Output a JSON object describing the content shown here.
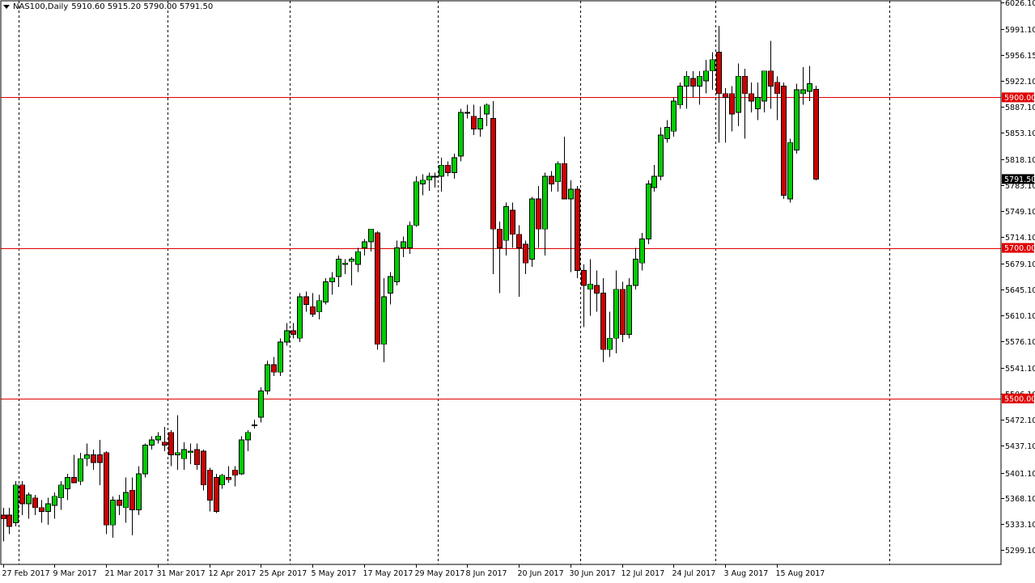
{
  "header": {
    "symbol": "NAS100,Daily",
    "ohlc": "5910.60 5915.20 5790.00 5791.50"
  },
  "colors": {
    "bull": "#00cc00",
    "bear": "#cc0000",
    "wick": "#000000",
    "hline": "#e00000",
    "grid": "#000000",
    "background": "#ffffff",
    "price_label": "#000000"
  },
  "chart_data": {
    "type": "candlestick",
    "title": "",
    "xlabel": "",
    "ylabel": "",
    "ylim": [
      5281.7,
      6026.1
    ],
    "y_ticks": [
      "6026.10",
      "5991.10",
      "5956.15",
      "5922.10",
      "5887.10",
      "5853.10",
      "5818.10",
      "5783.10",
      "5749.10",
      "5714.10",
      "5679.10",
      "5645.10",
      "5610.10",
      "5576.10",
      "5541.10",
      "5506.10",
      "5472.10",
      "5437.10",
      "5401.10",
      "5368.10",
      "5333.10",
      "5299.10"
    ],
    "x_labels": [
      {
        "index": 0,
        "label": "27 Feb 2017"
      },
      {
        "index": 8,
        "label": "9 Mar 2017"
      },
      {
        "index": 16,
        "label": "21 Mar 2017"
      },
      {
        "index": 24,
        "label": "31 Mar 2017"
      },
      {
        "index": 32,
        "label": "12 Apr 2017"
      },
      {
        "index": 40,
        "label": "25 Apr 2017"
      },
      {
        "index": 48,
        "label": "5 May 2017"
      },
      {
        "index": 56,
        "label": "17 May 2017"
      },
      {
        "index": 64,
        "label": "29 May 2017"
      },
      {
        "index": 72,
        "label": "8 Jun 2017"
      },
      {
        "index": 80,
        "label": "20 Jun 2017"
      },
      {
        "index": 88,
        "label": "30 Jun 2017"
      },
      {
        "index": 96,
        "label": "12 Jul 2017"
      },
      {
        "index": 104,
        "label": "24 Jul 2017"
      },
      {
        "index": 112,
        "label": "3 Aug 2017"
      },
      {
        "index": 120,
        "label": "15 Aug 2017"
      }
    ],
    "period_separators": [
      2,
      25,
      44,
      67,
      89,
      110,
      137
    ],
    "hlines": [
      {
        "value": 5900.0,
        "label": "5900.00"
      },
      {
        "value": 5700.0,
        "label": "5700.00"
      },
      {
        "value": 5500.0,
        "label": "5500.00"
      }
    ],
    "current_price": {
      "value": 5791.5,
      "label": "5791.50"
    },
    "candles": [
      {
        "o": 5345,
        "h": 5355,
        "l": 5310,
        "c": 5340
      },
      {
        "o": 5345,
        "h": 5355,
        "l": 5320,
        "c": 5330
      },
      {
        "o": 5335,
        "h": 5390,
        "l": 5330,
        "c": 5385
      },
      {
        "o": 5385,
        "h": 5390,
        "l": 5345,
        "c": 5360
      },
      {
        "o": 5360,
        "h": 5375,
        "l": 5340,
        "c": 5372
      },
      {
        "o": 5368,
        "h": 5372,
        "l": 5345,
        "c": 5355
      },
      {
        "o": 5355,
        "h": 5365,
        "l": 5335,
        "c": 5350
      },
      {
        "o": 5350,
        "h": 5368,
        "l": 5332,
        "c": 5360
      },
      {
        "o": 5358,
        "h": 5375,
        "l": 5340,
        "c": 5370
      },
      {
        "o": 5368,
        "h": 5390,
        "l": 5352,
        "c": 5385
      },
      {
        "o": 5380,
        "h": 5400,
        "l": 5365,
        "c": 5395
      },
      {
        "o": 5395,
        "h": 5425,
        "l": 5388,
        "c": 5388
      },
      {
        "o": 5390,
        "h": 5428,
        "l": 5385,
        "c": 5420
      },
      {
        "o": 5420,
        "h": 5440,
        "l": 5410,
        "c": 5425
      },
      {
        "o": 5425,
        "h": 5432,
        "l": 5405,
        "c": 5415
      },
      {
        "o": 5425,
        "h": 5445,
        "l": 5385,
        "c": 5415
      },
      {
        "o": 5428,
        "h": 5430,
        "l": 5320,
        "c": 5332
      },
      {
        "o": 5332,
        "h": 5370,
        "l": 5315,
        "c": 5365
      },
      {
        "o": 5365,
        "h": 5372,
        "l": 5345,
        "c": 5358
      },
      {
        "o": 5355,
        "h": 5395,
        "l": 5335,
        "c": 5375
      },
      {
        "o": 5378,
        "h": 5395,
        "l": 5318,
        "c": 5352
      },
      {
        "o": 5352,
        "h": 5410,
        "l": 5345,
        "c": 5400
      },
      {
        "o": 5400,
        "h": 5440,
        "l": 5395,
        "c": 5438
      },
      {
        "o": 5438,
        "h": 5450,
        "l": 5432,
        "c": 5445
      },
      {
        "o": 5445,
        "h": 5455,
        "l": 5440,
        "c": 5450
      },
      {
        "o": 5442,
        "h": 5462,
        "l": 5430,
        "c": 5438
      },
      {
        "o": 5455,
        "h": 5458,
        "l": 5410,
        "c": 5425
      },
      {
        "o": 5425,
        "h": 5478,
        "l": 5405,
        "c": 5428
      },
      {
        "o": 5420,
        "h": 5442,
        "l": 5405,
        "c": 5432
      },
      {
        "o": 5428,
        "h": 5440,
        "l": 5413,
        "c": 5430
      },
      {
        "o": 5432,
        "h": 5440,
        "l": 5405,
        "c": 5412
      },
      {
        "o": 5430,
        "h": 5432,
        "l": 5378,
        "c": 5385
      },
      {
        "o": 5405,
        "h": 5408,
        "l": 5350,
        "c": 5365
      },
      {
        "o": 5395,
        "h": 5400,
        "l": 5348,
        "c": 5350
      },
      {
        "o": 5385,
        "h": 5400,
        "l": 5380,
        "c": 5398
      },
      {
        "o": 5395,
        "h": 5410,
        "l": 5388,
        "c": 5392
      },
      {
        "o": 5405,
        "h": 5410,
        "l": 5383,
        "c": 5398
      },
      {
        "o": 5400,
        "h": 5450,
        "l": 5398,
        "c": 5445
      },
      {
        "o": 5445,
        "h": 5458,
        "l": 5430,
        "c": 5455
      },
      {
        "o": 5465,
        "h": 5472,
        "l": 5460,
        "c": 5465
      },
      {
        "o": 5475,
        "h": 5515,
        "l": 5468,
        "c": 5510
      },
      {
        "o": 5510,
        "h": 5550,
        "l": 5505,
        "c": 5545
      },
      {
        "o": 5545,
        "h": 5555,
        "l": 5530,
        "c": 5535
      },
      {
        "o": 5535,
        "h": 5580,
        "l": 5530,
        "c": 5575
      },
      {
        "o": 5575,
        "h": 5600,
        "l": 5570,
        "c": 5590
      },
      {
        "o": 5590,
        "h": 5600,
        "l": 5580,
        "c": 5585
      },
      {
        "o": 5580,
        "h": 5640,
        "l": 5575,
        "c": 5635
      },
      {
        "o": 5635,
        "h": 5642,
        "l": 5615,
        "c": 5625
      },
      {
        "o": 5622,
        "h": 5640,
        "l": 5608,
        "c": 5612
      },
      {
        "o": 5615,
        "h": 5638,
        "l": 5605,
        "c": 5630
      },
      {
        "o": 5628,
        "h": 5660,
        "l": 5625,
        "c": 5655
      },
      {
        "o": 5655,
        "h": 5668,
        "l": 5638,
        "c": 5660
      },
      {
        "o": 5662,
        "h": 5690,
        "l": 5648,
        "c": 5685
      },
      {
        "o": 5678,
        "h": 5685,
        "l": 5665,
        "c": 5680
      },
      {
        "o": 5682,
        "h": 5688,
        "l": 5650,
        "c": 5685
      },
      {
        "o": 5678,
        "h": 5700,
        "l": 5668,
        "c": 5695
      },
      {
        "o": 5700,
        "h": 5712,
        "l": 5690,
        "c": 5708
      },
      {
        "o": 5708,
        "h": 5725,
        "l": 5695,
        "c": 5725
      },
      {
        "o": 5720,
        "h": 5722,
        "l": 5565,
        "c": 5572
      },
      {
        "o": 5572,
        "h": 5660,
        "l": 5548,
        "c": 5635
      },
      {
        "o": 5640,
        "h": 5668,
        "l": 5625,
        "c": 5662
      },
      {
        "o": 5655,
        "h": 5710,
        "l": 5650,
        "c": 5700
      },
      {
        "o": 5700,
        "h": 5715,
        "l": 5688,
        "c": 5708
      },
      {
        "o": 5700,
        "h": 5735,
        "l": 5692,
        "c": 5730
      },
      {
        "o": 5730,
        "h": 5795,
        "l": 5728,
        "c": 5788
      },
      {
        "o": 5785,
        "h": 5798,
        "l": 5770,
        "c": 5790
      },
      {
        "o": 5790,
        "h": 5800,
        "l": 5776,
        "c": 5795
      },
      {
        "o": 5795,
        "h": 5800,
        "l": 5780,
        "c": 5795
      },
      {
        "o": 5795,
        "h": 5820,
        "l": 5775,
        "c": 5810
      },
      {
        "o": 5810,
        "h": 5815,
        "l": 5795,
        "c": 5800
      },
      {
        "o": 5800,
        "h": 5825,
        "l": 5792,
        "c": 5820
      },
      {
        "o": 5822,
        "h": 5885,
        "l": 5815,
        "c": 5880
      },
      {
        "o": 5880,
        "h": 5890,
        "l": 5872,
        "c": 5880
      },
      {
        "o": 5875,
        "h": 5890,
        "l": 5850,
        "c": 5858
      },
      {
        "o": 5858,
        "h": 5888,
        "l": 5848,
        "c": 5872
      },
      {
        "o": 5878,
        "h": 5892,
        "l": 5862,
        "c": 5890
      },
      {
        "o": 5872,
        "h": 5895,
        "l": 5665,
        "c": 5725
      },
      {
        "o": 5725,
        "h": 5735,
        "l": 5640,
        "c": 5700
      },
      {
        "o": 5710,
        "h": 5760,
        "l": 5690,
        "c": 5755
      },
      {
        "o": 5750,
        "h": 5760,
        "l": 5700,
        "c": 5718
      },
      {
        "o": 5718,
        "h": 5730,
        "l": 5635,
        "c": 5700
      },
      {
        "o": 5705,
        "h": 5710,
        "l": 5665,
        "c": 5680
      },
      {
        "o": 5685,
        "h": 5768,
        "l": 5675,
        "c": 5765
      },
      {
        "o": 5765,
        "h": 5782,
        "l": 5700,
        "c": 5725
      },
      {
        "o": 5725,
        "h": 5800,
        "l": 5690,
        "c": 5795
      },
      {
        "o": 5795,
        "h": 5802,
        "l": 5775,
        "c": 5785
      },
      {
        "o": 5788,
        "h": 5815,
        "l": 5775,
        "c": 5812
      },
      {
        "o": 5812,
        "h": 5848,
        "l": 5765,
        "c": 5765
      },
      {
        "o": 5765,
        "h": 5790,
        "l": 5668,
        "c": 5778
      },
      {
        "o": 5778,
        "h": 5782,
        "l": 5660,
        "c": 5670
      },
      {
        "o": 5670,
        "h": 5678,
        "l": 5595,
        "c": 5650
      },
      {
        "o": 5645,
        "h": 5685,
        "l": 5610,
        "c": 5652
      },
      {
        "o": 5650,
        "h": 5670,
        "l": 5615,
        "c": 5640
      },
      {
        "o": 5640,
        "h": 5660,
        "l": 5548,
        "c": 5565
      },
      {
        "o": 5565,
        "h": 5615,
        "l": 5555,
        "c": 5580
      },
      {
        "o": 5580,
        "h": 5670,
        "l": 5560,
        "c": 5645
      },
      {
        "o": 5645,
        "h": 5655,
        "l": 5575,
        "c": 5585
      },
      {
        "o": 5585,
        "h": 5660,
        "l": 5580,
        "c": 5650
      },
      {
        "o": 5650,
        "h": 5700,
        "l": 5645,
        "c": 5685
      },
      {
        "o": 5680,
        "h": 5720,
        "l": 5670,
        "c": 5712
      },
      {
        "o": 5712,
        "h": 5790,
        "l": 5705,
        "c": 5785
      },
      {
        "o": 5780,
        "h": 5810,
        "l": 5775,
        "c": 5795
      },
      {
        "o": 5795,
        "h": 5860,
        "l": 5790,
        "c": 5850
      },
      {
        "o": 5845,
        "h": 5870,
        "l": 5840,
        "c": 5860
      },
      {
        "o": 5855,
        "h": 5900,
        "l": 5848,
        "c": 5895
      },
      {
        "o": 5890,
        "h": 5920,
        "l": 5885,
        "c": 5915
      },
      {
        "o": 5915,
        "h": 5935,
        "l": 5885,
        "c": 5928
      },
      {
        "o": 5925,
        "h": 5935,
        "l": 5900,
        "c": 5915
      },
      {
        "o": 5915,
        "h": 5935,
        "l": 5890,
        "c": 5928
      },
      {
        "o": 5922,
        "h": 5950,
        "l": 5905,
        "c": 5935
      },
      {
        "o": 5935,
        "h": 5960,
        "l": 5910,
        "c": 5950
      },
      {
        "o": 5960,
        "h": 5995,
        "l": 5840,
        "c": 5905
      },
      {
        "o": 5905,
        "h": 5912,
        "l": 5840,
        "c": 5900
      },
      {
        "o": 5905,
        "h": 5915,
        "l": 5855,
        "c": 5878
      },
      {
        "o": 5880,
        "h": 5945,
        "l": 5862,
        "c": 5928
      },
      {
        "o": 5928,
        "h": 5938,
        "l": 5845,
        "c": 5905
      },
      {
        "o": 5905,
        "h": 5920,
        "l": 5880,
        "c": 5895
      },
      {
        "o": 5885,
        "h": 5920,
        "l": 5870,
        "c": 5900
      },
      {
        "o": 5895,
        "h": 5935,
        "l": 5880,
        "c": 5935
      },
      {
        "o": 5935,
        "h": 5975,
        "l": 5885,
        "c": 5915
      },
      {
        "o": 5920,
        "h": 5928,
        "l": 5870,
        "c": 5905
      },
      {
        "o": 5915,
        "h": 5920,
        "l": 5765,
        "c": 5770
      },
      {
        "o": 5765,
        "h": 5845,
        "l": 5760,
        "c": 5840
      },
      {
        "o": 5830,
        "h": 5918,
        "l": 5825,
        "c": 5910
      },
      {
        "o": 5905,
        "h": 5940,
        "l": 5890,
        "c": 5910
      },
      {
        "o": 5908,
        "h": 5942,
        "l": 5895,
        "c": 5918
      },
      {
        "o": 5910.6,
        "h": 5915.2,
        "l": 5790,
        "c": 5791.5
      }
    ]
  }
}
